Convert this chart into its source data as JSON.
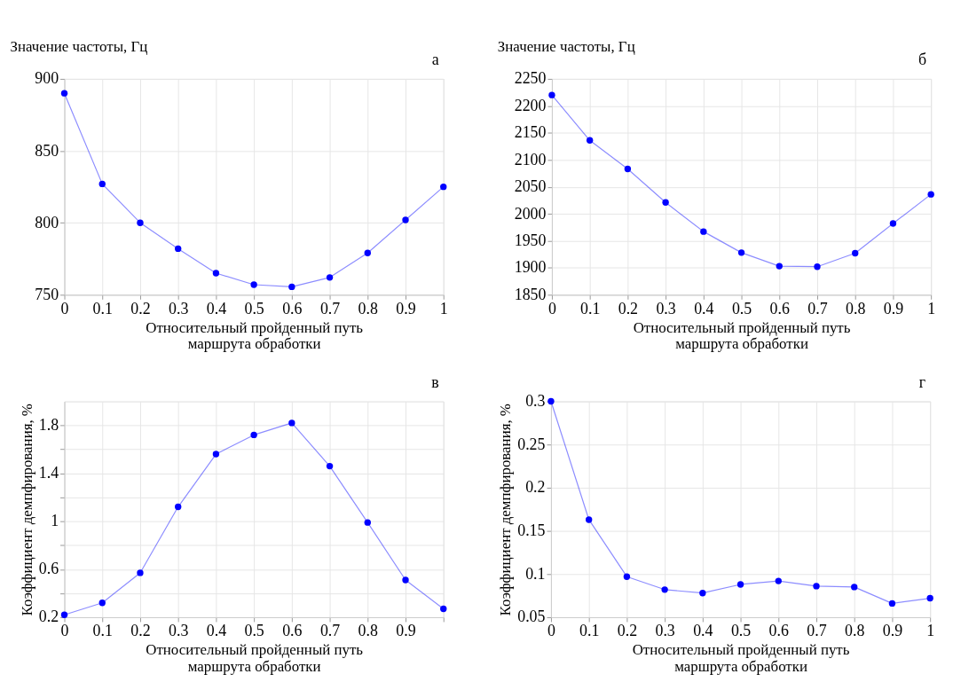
{
  "chart_data": [
    {
      "type": "line",
      "annotations": [
        "а"
      ],
      "ylabel": "Значение частоты, Гц",
      "xlabel": "Относительный пройденный путь\nмаршрута обработки",
      "x": [
        0,
        0.1,
        0.2,
        0.3,
        0.4,
        0.5,
        0.6,
        0.7,
        0.8,
        0.9,
        1
      ],
      "series": [
        {
          "color": "#0000ff",
          "values": [
            890,
            827,
            800,
            782,
            765,
            757,
            755.5,
            762,
            779,
            802,
            825
          ]
        }
      ],
      "xlim": [
        0,
        1
      ],
      "xticks": [
        0,
        0.1,
        0.2,
        0.3,
        0.4,
        0.5,
        0.6,
        0.7,
        0.8,
        0.9,
        1
      ],
      "ylim": [
        750,
        900
      ],
      "yticks": [
        750,
        800,
        850,
        900
      ],
      "grid": true,
      "marker": "circle",
      "legend": false
    },
    {
      "type": "line",
      "annotations": [
        "б"
      ],
      "ylabel": "Значение частоты, Гц",
      "xlabel": "Относительный пройденный путь\nмаршрута обработки",
      "x": [
        0,
        0.1,
        0.2,
        0.3,
        0.4,
        0.5,
        0.6,
        0.7,
        0.8,
        0.9,
        1
      ],
      "series": [
        {
          "color": "#0000ff",
          "values": [
            2220,
            2136,
            2083,
            2021,
            1967,
            1928,
            1903,
            1902,
            1927,
            1982,
            2036
          ]
        }
      ],
      "xlim": [
        0,
        1
      ],
      "xticks": [
        0,
        0.1,
        0.2,
        0.3,
        0.4,
        0.5,
        0.6,
        0.7,
        0.8,
        0.9,
        1
      ],
      "ylim": [
        1850,
        2250
      ],
      "yticks": [
        1850,
        1900,
        1950,
        2000,
        2050,
        2100,
        2150,
        2200,
        2250
      ],
      "grid": true,
      "marker": "circle",
      "legend": false
    },
    {
      "type": "line",
      "annotations": [
        "в"
      ],
      "ylabel": "Коэффициент демпфирования, %",
      "xlabel": "Относительный пройденный путь\nмаршрута обработки",
      "x": [
        0,
        0.1,
        0.2,
        0.3,
        0.4,
        0.5,
        0.6,
        0.7,
        0.8,
        0.9,
        1
      ],
      "series": [
        {
          "color": "#0000ff",
          "values": [
            0.22,
            0.32,
            0.57,
            1.12,
            1.56,
            1.72,
            1.82,
            1.46,
            0.99,
            0.51,
            0.27
          ]
        }
      ],
      "xlim": [
        0,
        1
      ],
      "xticks": [
        0,
        0.1,
        0.2,
        0.3,
        0.4,
        0.5,
        0.6,
        0.7,
        0.8,
        0.9,
        {
          "value": 1,
          "label": null
        }
      ],
      "ylim": [
        0.2,
        2.0
      ],
      "yticks": [
        0.2,
        {
          "value": 0.4,
          "label": null
        },
        0.6,
        {
          "value": 0.8,
          "label": null
        },
        1,
        {
          "value": 1.2,
          "label": null
        },
        1.4,
        {
          "value": 1.6,
          "label": null
        },
        1.8
      ],
      "grid": true,
      "marker": "circle",
      "legend": false
    },
    {
      "type": "line",
      "annotations": [
        "г"
      ],
      "ylabel": "Коэффициент демпфирования, %",
      "xlabel": "Относительный пройденный путь\nмаршрута обработки",
      "x": [
        0,
        0.1,
        0.2,
        0.3,
        0.4,
        0.5,
        0.6,
        0.7,
        0.8,
        0.9,
        1
      ],
      "series": [
        {
          "color": "#0000ff",
          "values": [
            0.3,
            0.163,
            0.097,
            0.082,
            0.078,
            0.088,
            0.092,
            0.086,
            0.085,
            0.066,
            0.072
          ]
        }
      ],
      "xlim": [
        0,
        1
      ],
      "xticks": [
        0,
        0.1,
        0.2,
        0.3,
        0.4,
        0.5,
        0.6,
        0.7,
        0.8,
        0.9,
        1
      ],
      "ylim": [
        0.05,
        0.3
      ],
      "yticks": [
        0.05,
        0.1,
        0.15,
        0.2,
        0.25,
        0.3
      ],
      "grid": true,
      "marker": "circle",
      "legend": false
    }
  ]
}
